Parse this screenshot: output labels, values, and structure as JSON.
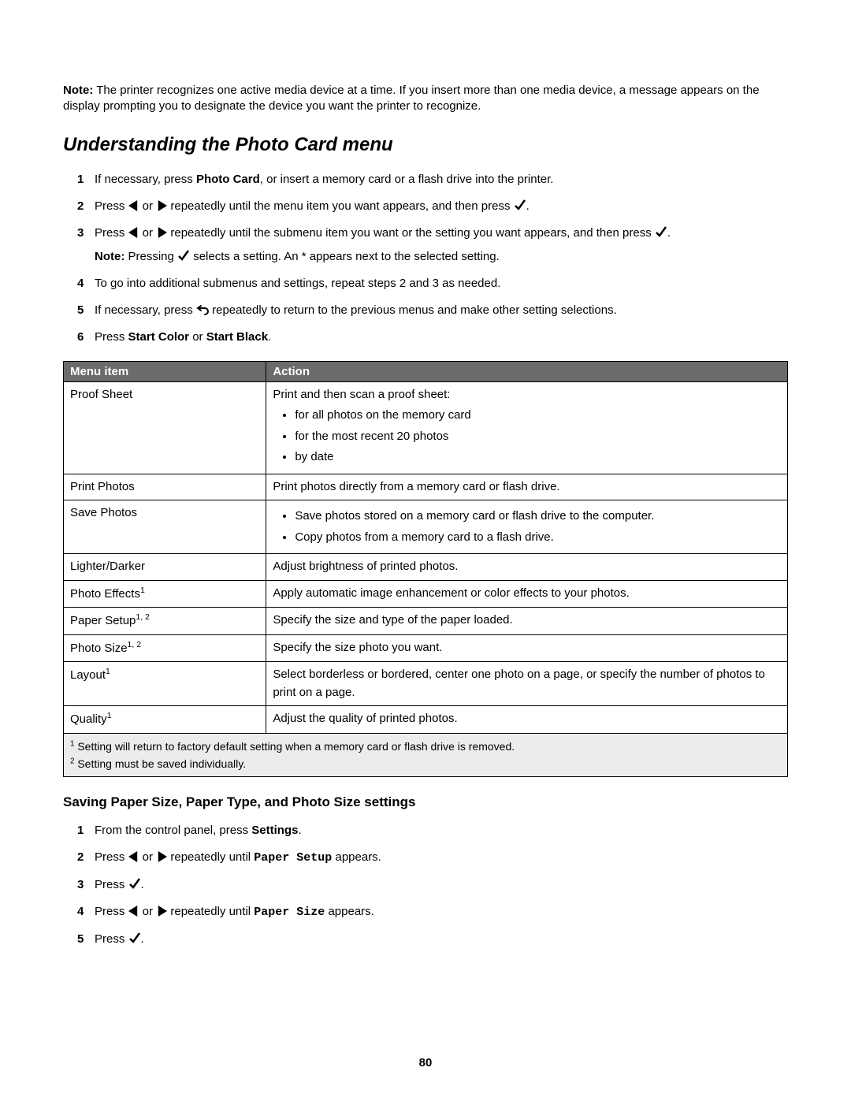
{
  "topNote": {
    "label": "Note:",
    "text": "The printer recognizes one active media device at a time. If you insert more than one media device, a message appears on the display prompting you to designate the device you want the printer to recognize."
  },
  "heading": "Understanding the Photo Card menu",
  "steps": [
    {
      "num": "1",
      "pre": "If necessary, press ",
      "bold1": "Photo Card",
      "post": ", or insert a memory card or a flash drive into the printer."
    },
    {
      "num": "2",
      "pre": "Press ",
      "mid": " or ",
      "post1": " repeatedly until the menu item you want appears, and then press ",
      "post2": "."
    },
    {
      "num": "3",
      "pre": "Press ",
      "mid": " or ",
      "post1": " repeatedly until the submenu item you want or the setting you want appears, and then press ",
      "post2": ".",
      "noteLabel": "Note:",
      "noteMid1": " Pressing ",
      "noteMid2": " selects a setting. An * appears next to the selected setting."
    },
    {
      "num": "4",
      "text": "To go into additional submenus and settings, repeat steps 2 and 3 as needed."
    },
    {
      "num": "5",
      "pre": "If necessary, press ",
      "post": " repeatedly to return to the previous menus and make other setting selections."
    },
    {
      "num": "6",
      "pre": "Press ",
      "bold1": "Start Color",
      "mid": " or ",
      "bold2": "Start Black",
      "post": "."
    }
  ],
  "table": {
    "headers": {
      "menu": "Menu item",
      "action": "Action"
    },
    "rows": [
      {
        "menu": "Proof Sheet",
        "actionIntro": "Print and then scan a proof sheet:",
        "bullets": [
          "for all photos on the memory card",
          "for the most recent 20 photos",
          "by date"
        ]
      },
      {
        "menu": "Print Photos",
        "action": "Print photos directly from a memory card or flash drive."
      },
      {
        "menu": "Save Photos",
        "bullets": [
          "Save photos stored on a memory card or flash drive to the computer.",
          "Copy photos from a memory card to a flash drive."
        ]
      },
      {
        "menu": "Lighter/Darker",
        "action": "Adjust brightness of printed photos."
      },
      {
        "menu": "Photo Effects",
        "sup": "1",
        "action": "Apply automatic image enhancement or color effects to your photos."
      },
      {
        "menu": "Paper Setup",
        "sup": "1, 2",
        "action": "Specify the size and type of the paper loaded."
      },
      {
        "menu": "Photo Size",
        "sup": "1, 2",
        "action": "Specify the size photo you want."
      },
      {
        "menu": "Layout",
        "sup": "1",
        "action": "Select borderless or bordered, center one photo on a page, or specify the number of photos to print on a page."
      },
      {
        "menu": "Quality",
        "sup": "1",
        "action": "Adjust the quality of printed photos."
      }
    ],
    "footnotes": [
      {
        "sup": "1",
        "text": " Setting will return to factory default setting when a memory card or flash drive is removed."
      },
      {
        "sup": "2",
        "text": " Setting must be saved individually."
      }
    ]
  },
  "subheading": "Saving Paper Size, Paper Type, and Photo Size settings",
  "steps2": [
    {
      "num": "1",
      "pre": "From the control panel, press ",
      "bold1": "Settings",
      "post": "."
    },
    {
      "num": "2",
      "pre": "Press ",
      "mid": " or ",
      "post1": " repeatedly until ",
      "mono": "Paper Setup",
      "post2": " appears."
    },
    {
      "num": "3",
      "pre": "Press ",
      "post": "."
    },
    {
      "num": "4",
      "pre": "Press ",
      "mid": " or ",
      "post1": " repeatedly until ",
      "mono": "Paper Size",
      "post2": " appears."
    },
    {
      "num": "5",
      "pre": "Press ",
      "post": "."
    }
  ],
  "pageNumber": "80",
  "colors": {
    "headerBg": "#6b6b6b",
    "headerFg": "#ffffff",
    "footnoteBg": "#ececec",
    "border": "#000000"
  }
}
